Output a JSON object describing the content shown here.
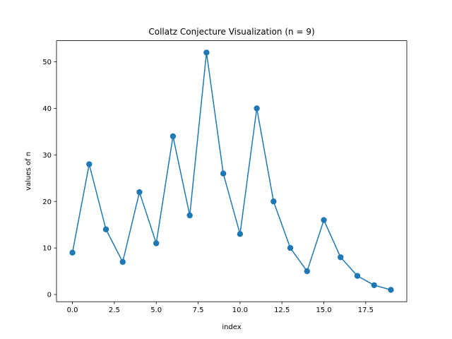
{
  "chart_data": {
    "type": "line",
    "title": "Collatz Conjecture Visualization (n = 9)",
    "xlabel": "index",
    "ylabel": "values of n",
    "x": [
      0,
      1,
      2,
      3,
      4,
      5,
      6,
      7,
      8,
      9,
      10,
      11,
      12,
      13,
      14,
      15,
      16,
      17,
      18,
      19
    ],
    "series": [
      {
        "values": [
          9,
          28,
          14,
          7,
          22,
          11,
          34,
          17,
          52,
          26,
          13,
          40,
          20,
          10,
          5,
          16,
          8,
          4,
          2,
          1
        ],
        "color": "#1f77b4",
        "marker": "circle"
      }
    ],
    "xlim": [
      -0.95,
      19.95
    ],
    "ylim": [
      -1.55,
      54.55
    ],
    "xticks": [
      {
        "value": 0,
        "label": "0.0"
      },
      {
        "value": 2.5,
        "label": "2.5"
      },
      {
        "value": 5,
        "label": "5.0"
      },
      {
        "value": 7.5,
        "label": "7.5"
      },
      {
        "value": 10,
        "label": "10.0"
      },
      {
        "value": 12.5,
        "label": "12.5"
      },
      {
        "value": 15,
        "label": "15.0"
      },
      {
        "value": 17.5,
        "label": "17.5"
      }
    ],
    "yticks": [
      {
        "value": 0,
        "label": "0"
      },
      {
        "value": 10,
        "label": "10"
      },
      {
        "value": 20,
        "label": "20"
      },
      {
        "value": 30,
        "label": "30"
      },
      {
        "value": 40,
        "label": "40"
      },
      {
        "value": 50,
        "label": "50"
      }
    ],
    "grid": false,
    "legend": "none"
  }
}
